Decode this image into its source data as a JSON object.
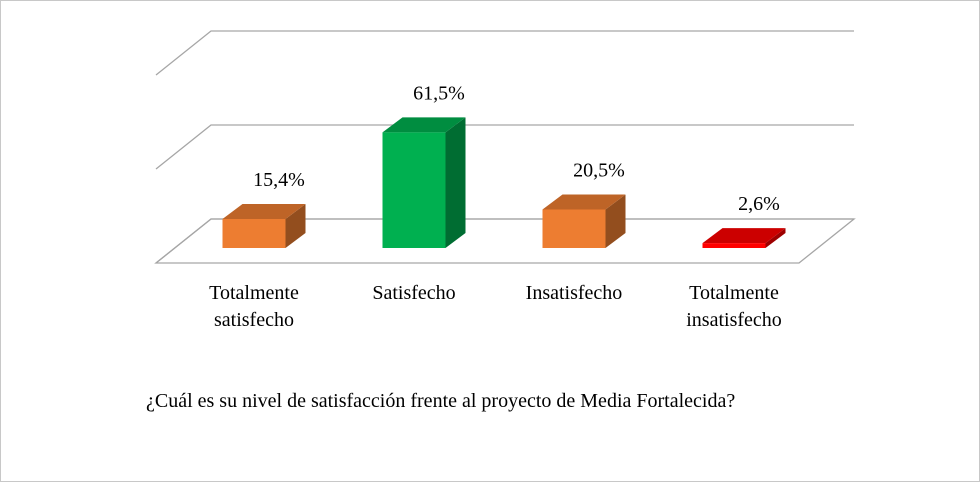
{
  "chart_data": {
    "type": "bar3d",
    "caption": "¿Cuál es su nivel de satisfacción frente al proyecto de Media Fortalecida?",
    "categories": [
      "Totalmente satisfecho",
      "Satisfecho",
      "Insatisfecho",
      "Totalmente insatisfecho"
    ],
    "values": [
      15.4,
      61.5,
      20.5,
      2.6
    ],
    "value_labels": [
      "15,4%",
      "61,5%",
      "20,5%",
      "2,6%"
    ],
    "colors": [
      "#ED7D31",
      "#00B050",
      "#ED7D31",
      "#FF0000"
    ],
    "ylim": [
      0,
      100
    ],
    "yticks": [
      0,
      50,
      100
    ],
    "grid": true
  }
}
